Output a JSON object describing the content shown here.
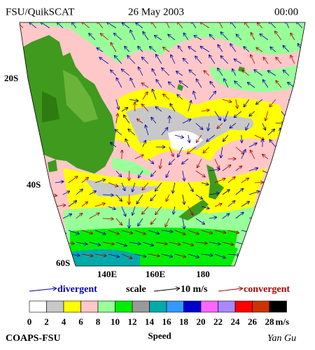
{
  "header": {
    "source": "FSU/QuikSCAT",
    "date": "26 May 2003",
    "time": "00:00"
  },
  "map": {
    "lat_labels": [
      "20S",
      "40S",
      "60S"
    ],
    "lon_labels": [
      "140E",
      "160E",
      "180"
    ]
  },
  "legend": {
    "divergent": "divergent",
    "scale": "scale",
    "scale_value": "10 m/s",
    "convergent": "convergent"
  },
  "colorbar": {
    "ticks": [
      0,
      2,
      4,
      6,
      8,
      10,
      12,
      14,
      16,
      18,
      20,
      22,
      24,
      26,
      28
    ],
    "unit": "m/s",
    "colors": [
      "#ffffff",
      "#c8c8c8",
      "#ffff00",
      "#ffc8c8",
      "#99ff99",
      "#00ee00",
      "#999999",
      "#00aaaa",
      "#3399ff",
      "#0000cc",
      "#ff66ff",
      "#aa88ff",
      "#ff0000",
      "#cc3300",
      "#000000"
    ]
  },
  "footer": {
    "org": "COAPS-FSU",
    "label": "Speed",
    "author": "Yan Gu"
  }
}
